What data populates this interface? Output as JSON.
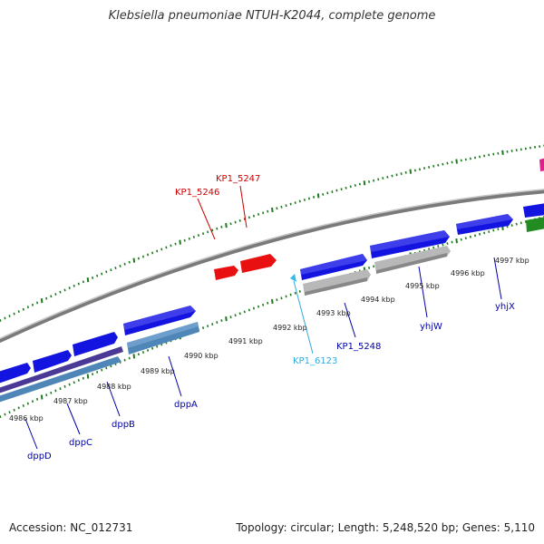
{
  "title": "Klebsiella pneumoniae NTUH-K2044, complete genome",
  "footer": {
    "accession": "Accession: NC_012731",
    "stats": "Topology: circular; Length: 5,248,520 bp; Genes: 5,110"
  },
  "colors": {
    "forward_gene": "#1414e0",
    "red_gene": "#e81010",
    "gray_gene": "#b8b8b8",
    "cds_blue": "#4f86b8",
    "cds_purple": "#4a3a95",
    "green_gene": "#228b22",
    "pink_gene": "#e0208a",
    "cyan_gene": "#33bbee",
    "label_red": "#cc0000",
    "label_blue": "#0000aa",
    "label_cyan": "#33aadd",
    "tick_green": "#1f7a1f",
    "backbone": "#888888"
  },
  "scale_labels": [
    "4986 kbp",
    "4987 kbp",
    "4988 kbp",
    "4989 kbp",
    "4990 kbp",
    "4991 kbp",
    "4992 kbp",
    "4993 kbp",
    "4994 kbp",
    "4995 kbp",
    "4996 kbp",
    "4997 kbp"
  ],
  "gene_labels": {
    "kp1_5247": "KP1_5247",
    "kp1_5246": "KP1_5246",
    "kp1_6123": "KP1_6123",
    "kp1_5248": "KP1_5248",
    "yhjW": "yhjW",
    "yhjX": "yhjX",
    "dppA": "dppA",
    "dppB": "dppB",
    "dppC": "dppC",
    "dppD": "dppD"
  }
}
